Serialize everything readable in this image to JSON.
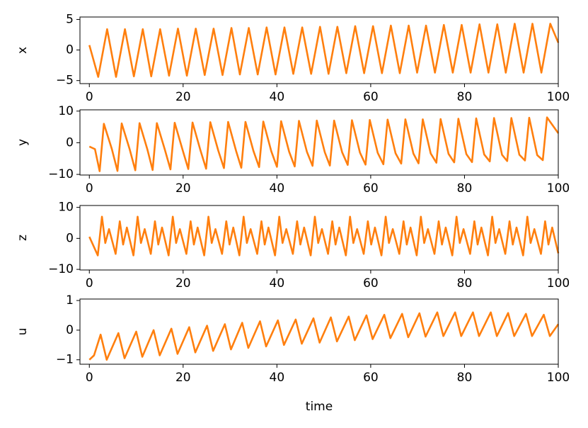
{
  "chart_data": [
    {
      "type": "line",
      "ylabel": "x",
      "color": "#ff7f0e",
      "x": [
        0,
        1.9,
        3.8,
        5.7,
        7.6,
        9.5,
        11.4,
        13.2,
        15.1,
        17.0,
        18.9,
        20.8,
        22.7,
        24.6,
        26.5,
        28.4,
        30.3,
        32.1,
        34.0,
        35.9,
        37.8,
        39.7,
        41.6,
        43.5,
        45.4,
        47.3,
        49.2,
        51.0,
        52.9,
        54.8,
        56.7,
        58.6,
        60.5,
        62.4,
        64.3,
        66.2,
        68.1,
        69.9,
        71.8,
        73.7,
        75.6,
        77.5,
        79.4,
        81.3,
        83.2,
        85.1,
        87.0,
        88.8,
        90.7,
        92.6,
        94.5,
        96.4,
        98.3,
        100
      ],
      "values": [
        0.8,
        -4.4,
        3.4,
        -4.4,
        3.4,
        -4.3,
        3.4,
        -4.3,
        3.4,
        -4.2,
        3.5,
        -4.2,
        3.5,
        -4.1,
        3.5,
        -4.1,
        3.6,
        -4.0,
        3.6,
        -4.0,
        3.7,
        -4.0,
        3.7,
        -3.9,
        3.7,
        -3.9,
        3.8,
        -3.9,
        3.8,
        -3.8,
        3.9,
        -3.8,
        3.9,
        -3.8,
        4.0,
        -3.8,
        4.0,
        -3.7,
        4.0,
        -3.7,
        4.1,
        -3.7,
        4.1,
        -3.7,
        4.2,
        -3.7,
        4.2,
        -3.7,
        4.3,
        -3.7,
        4.3,
        -3.7,
        4.3,
        1.2
      ],
      "xlim": [
        -2,
        100
      ],
      "xticks": [
        0,
        20,
        40,
        60,
        80,
        100
      ],
      "ylim": [
        -5.5,
        5.4
      ],
      "yticks": [
        {
          "value": -5,
          "label": "−5"
        },
        0,
        5
      ]
    },
    {
      "type": "line",
      "ylabel": "y",
      "color": "#ff7f0e",
      "x": [
        0,
        1.2,
        2.2,
        3.1,
        4.8,
        6.0,
        6.9,
        8.6,
        9.8,
        10.7,
        12.4,
        13.5,
        14.4,
        16.1,
        17.3,
        18.2,
        19.9,
        21.1,
        22.0,
        23.7,
        24.9,
        25.8,
        27.5,
        28.7,
        29.6,
        31.3,
        32.4,
        33.3,
        35.0,
        36.2,
        37.1,
        38.8,
        40.0,
        40.9,
        42.6,
        43.8,
        44.7,
        46.4,
        47.6,
        48.5,
        50.2,
        51.3,
        52.2,
        53.9,
        55.1,
        56.0,
        57.7,
        58.9,
        59.8,
        61.5,
        62.7,
        63.6,
        65.3,
        66.5,
        67.4,
        69.1,
        70.2,
        71.1,
        72.8,
        74.0,
        74.9,
        76.6,
        77.8,
        78.7,
        80.4,
        81.6,
        82.5,
        84.2,
        85.4,
        86.3,
        88.0,
        89.1,
        90.0,
        91.7,
        92.9,
        93.8,
        95.5,
        96.7,
        97.6,
        100
      ],
      "values": [
        -1.2,
        -2,
        -9,
        6,
        -2,
        -8.9,
        6.1,
        -2.1,
        -8.7,
        6.2,
        -2.2,
        -8.6,
        6.2,
        -2.2,
        -8.4,
        6.3,
        -2.3,
        -8.3,
        6.4,
        -2.4,
        -8.2,
        6.5,
        -2.5,
        -8.0,
        6.6,
        -2.6,
        -7.9,
        6.6,
        -2.6,
        -7.7,
        6.7,
        -2.7,
        -7.6,
        6.8,
        -2.8,
        -7.5,
        6.9,
        -2.9,
        -7.3,
        7.0,
        -3.0,
        -7.2,
        7.0,
        -3.0,
        -7.0,
        7.1,
        -3.1,
        -6.9,
        7.2,
        -3.2,
        -6.8,
        7.3,
        -3.3,
        -6.6,
        7.4,
        -3.4,
        -6.5,
        7.4,
        -3.4,
        -6.3,
        7.5,
        -3.5,
        -6.2,
        7.6,
        -3.6,
        -6.1,
        7.7,
        -3.7,
        -5.9,
        7.8,
        -3.8,
        -5.8,
        7.8,
        -3.8,
        -5.6,
        7.9,
        -3.9,
        -5.5,
        8.0,
        3.0
      ],
      "xlim": [
        -2,
        100
      ],
      "xticks": [
        0,
        20,
        40,
        60,
        80,
        100
      ],
      "ylim": [
        -10.2,
        10.4
      ],
      "yticks": [
        {
          "value": -10,
          "label": "−10"
        },
        0,
        10
      ]
    },
    {
      "type": "line",
      "ylabel": "z",
      "color": "#ff7f0e",
      "x": [
        0,
        1.8,
        2.7,
        3.4,
        4.2,
        5.6,
        6.5,
        7.2,
        8.0,
        9.4,
        10.3,
        11.0,
        11.8,
        13.1,
        14.0,
        14.7,
        15.5,
        16.9,
        17.8,
        18.5,
        19.3,
        20.7,
        21.6,
        22.3,
        23.1,
        24.5,
        25.4,
        26.1,
        26.9,
        28.3,
        29.2,
        29.9,
        30.7,
        32.0,
        32.9,
        33.6,
        34.4,
        35.8,
        36.7,
        37.4,
        38.2,
        39.6,
        40.5,
        41.2,
        42.0,
        43.4,
        44.3,
        45.0,
        45.8,
        47.2,
        48.1,
        48.8,
        49.6,
        50.9,
        51.8,
        52.5,
        53.3,
        54.7,
        55.6,
        56.3,
        57.1,
        58.5,
        59.4,
        60.1,
        60.9,
        62.3,
        63.2,
        63.9,
        64.7,
        66.1,
        67.0,
        67.7,
        68.5,
        69.8,
        70.7,
        71.4,
        72.2,
        73.6,
        74.5,
        75.2,
        76.0,
        77.4,
        78.3,
        79.0,
        79.8,
        81.2,
        82.1,
        82.8,
        83.6,
        85.0,
        85.9,
        86.6,
        87.4,
        88.7,
        89.6,
        90.3,
        91.1,
        92.5,
        93.4,
        94.1,
        94.9,
        96.3,
        97.2,
        97.9,
        98.7,
        100
      ],
      "values": [
        0.5,
        -5.5,
        7,
        -1.5,
        3,
        -5.0,
        5.5,
        -2,
        3.5,
        -5.5,
        7,
        -1.5,
        3,
        -5.0,
        5.5,
        -2,
        3.5,
        -5.5,
        7,
        -1.5,
        3,
        -5.0,
        5.5,
        -2,
        3.5,
        -5.5,
        7,
        -1.5,
        3,
        -5.0,
        5.5,
        -2,
        3.5,
        -5.5,
        7,
        -1.5,
        3,
        -5.0,
        5.5,
        -2,
        3.5,
        -5.5,
        7,
        -1.5,
        3,
        -5.0,
        5.5,
        -2,
        3.5,
        -5.5,
        7,
        -1.5,
        3,
        -5.0,
        5.5,
        -2,
        3.5,
        -5.5,
        7,
        -1.5,
        3,
        -5.0,
        5.5,
        -2,
        3.5,
        -5.5,
        7,
        -1.5,
        3,
        -5.0,
        5.5,
        -2,
        3.5,
        -5.5,
        7,
        -1.5,
        3,
        -5.0,
        5.5,
        -2,
        3.5,
        -5.5,
        7,
        -1.5,
        3,
        -5.0,
        5.5,
        -2,
        3.5,
        -5.5,
        7,
        -1.5,
        3,
        -5.0,
        5.5,
        -2,
        3.5,
        -5.5,
        7,
        -1.5,
        3,
        -5.0,
        5.5,
        -2,
        3.5,
        -4.8
      ],
      "xlim": [
        -2,
        100
      ],
      "xticks": [
        0,
        20,
        40,
        60,
        80,
        100
      ],
      "ylim": [
        -10.2,
        10.6
      ],
      "yticks": [
        {
          "value": -10,
          "label": "−10"
        },
        0,
        10
      ]
    },
    {
      "type": "line",
      "ylabel": "u",
      "xlabel": "time",
      "color": "#ff7f0e",
      "x": [
        0,
        1,
        2.4,
        3.7,
        6.2,
        7.5,
        10.0,
        11.3,
        13.7,
        15.0,
        17.5,
        18.8,
        21.3,
        22.6,
        25.1,
        26.4,
        28.9,
        30.2,
        32.6,
        33.9,
        36.4,
        37.7,
        40.2,
        41.5,
        44.0,
        45.3,
        47.8,
        49.1,
        51.5,
        52.8,
        55.3,
        56.6,
        59.1,
        60.4,
        62.9,
        64.2,
        66.7,
        68.0,
        70.4,
        71.7,
        74.2,
        75.5,
        78.0,
        79.3,
        81.8,
        83.1,
        85.6,
        86.9,
        89.3,
        90.6,
        93.1,
        94.4,
        96.9,
        98.2,
        100
      ],
      "values": [
        -1.0,
        -0.85,
        -0.15,
        -1.0,
        -0.1,
        -0.95,
        -0.05,
        -0.9,
        0,
        -0.85,
        0.05,
        -0.8,
        0.1,
        -0.75,
        0.15,
        -0.7,
        0.2,
        -0.65,
        0.25,
        -0.6,
        0.3,
        -0.55,
        0.33,
        -0.5,
        0.36,
        -0.46,
        0.4,
        -0.42,
        0.43,
        -0.38,
        0.46,
        -0.34,
        0.5,
        -0.3,
        0.52,
        -0.27,
        0.55,
        -0.24,
        0.57,
        -0.22,
        0.6,
        -0.2,
        0.6,
        -0.2,
        0.6,
        -0.2,
        0.6,
        -0.2,
        0.58,
        -0.2,
        0.55,
        -0.2,
        0.52,
        -0.2,
        0.2
      ],
      "xlim": [
        -2,
        100
      ],
      "xticks": [
        0,
        20,
        40,
        60,
        80,
        100
      ],
      "ylim": [
        -1.15,
        1.05
      ],
      "yticks": [
        {
          "value": -1,
          "label": "−1"
        },
        0,
        1
      ]
    }
  ]
}
